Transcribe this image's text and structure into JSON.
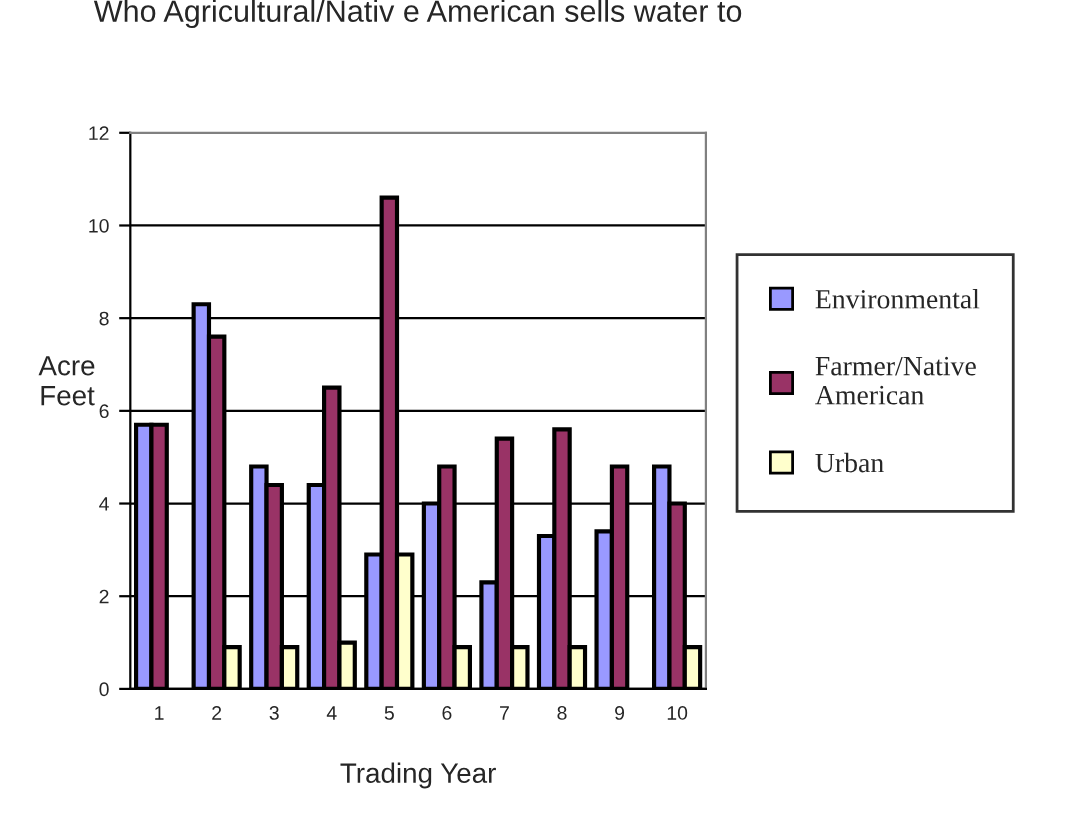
{
  "chart_data": {
    "type": "bar",
    "title": "Who Agricultural/Nativ e American sells water to",
    "xlabel": "Trading Year",
    "ylabel": "Acre\nFeet",
    "categories": [
      "1",
      "2",
      "3",
      "4",
      "5",
      "6",
      "7",
      "8",
      "9",
      "10"
    ],
    "series": [
      {
        "name": "Environmental",
        "color": "#9999ff",
        "values": [
          5.7,
          8.3,
          4.8,
          4.4,
          2.9,
          4.0,
          2.3,
          3.3,
          3.4,
          4.8
        ]
      },
      {
        "name": "Farmer/Native American",
        "color": "#993366",
        "values": [
          5.7,
          7.6,
          4.4,
          6.5,
          10.6,
          4.8,
          5.4,
          5.6,
          4.8,
          4.0
        ]
      },
      {
        "name": "Urban",
        "color": "#ffffcc",
        "values": [
          null,
          0.9,
          0.9,
          1.0,
          2.9,
          0.9,
          0.9,
          0.9,
          null,
          0.9
        ]
      }
    ],
    "ylim": [
      0,
      12
    ],
    "yticks": [
      0,
      2,
      4,
      6,
      8,
      10,
      12
    ],
    "grid": "y",
    "legend": "right"
  }
}
